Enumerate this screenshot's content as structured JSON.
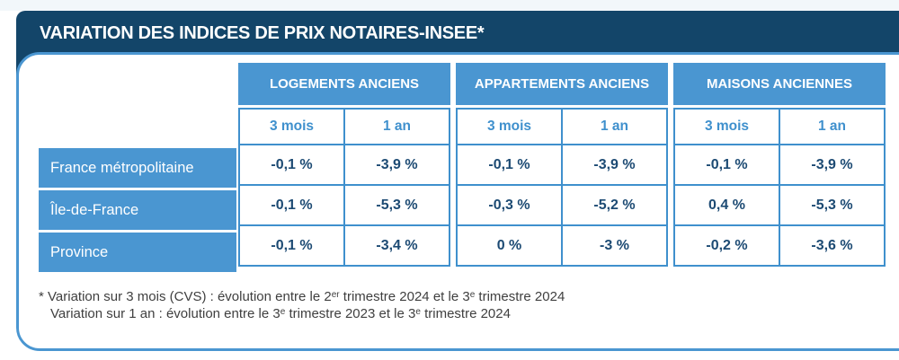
{
  "title": "VARIATION DES INDICES DE PRIX NOTAIRES-INSEE*",
  "table": {
    "groups": [
      {
        "label": "LOGEMENTS ANCIENS",
        "periods": [
          "3 mois",
          "1 an"
        ]
      },
      {
        "label": "APPARTEMENTS ANCIENS",
        "periods": [
          "3 mois",
          "1 an"
        ]
      },
      {
        "label": "MAISONS ANCIENNES",
        "periods": [
          "3 mois",
          "1 an"
        ]
      }
    ],
    "rows": [
      {
        "label": "France métropolitaine",
        "values": [
          "-0,1 %",
          "-3,9 %",
          "-0,1 %",
          "-3,9 %",
          "-0,1 %",
          "-3,9 %"
        ]
      },
      {
        "label": "Île-de-France",
        "values": [
          "-0,1 %",
          "-5,3 %",
          "-0,3 %",
          "-5,2 %",
          "0,4 %",
          "-5,3 %"
        ]
      },
      {
        "label": "Province",
        "values": [
          "-0,1 %",
          "-3,4 %",
          "0 %",
          "-3 %",
          "-0,2 %",
          "-3,6 %"
        ]
      }
    ]
  },
  "footnote": {
    "line1": {
      "t1": "* Variation sur 3 mois (CVS) : évolution entre le 2",
      "sup1": "er",
      "t2": " trimestre 2024 et le 3",
      "sup2": "e",
      "t3": " trimestre 2024"
    },
    "line2": {
      "t1": "Variation sur 1 an : évolution entre le 3",
      "sup1": "e",
      "t2": " trimestre 2023 et le 3",
      "sup2": "e",
      "t3": " trimestre 2024"
    }
  },
  "colors": {
    "navy_header": "#134569",
    "table_blue": "#4a96d1",
    "border_blue": "#3f90cd",
    "value_text": "#1c4a73",
    "note_text": "#3f3f3f"
  },
  "chart_data": {
    "type": "table",
    "title": "VARIATION DES INDICES DE PRIX NOTAIRES-INSEE*",
    "column_groups": [
      "LOGEMENTS ANCIENS",
      "APPARTEMENTS ANCIENS",
      "MAISONS ANCIENNES"
    ],
    "sub_columns": [
      "3 mois",
      "1 an"
    ],
    "row_labels": [
      "France métropolitaine",
      "Île-de-France",
      "Province"
    ],
    "values_pct": [
      [
        -0.1,
        -3.9,
        -0.1,
        -3.9,
        -0.1,
        -3.9
      ],
      [
        -0.1,
        -5.3,
        -0.3,
        -5.2,
        0.4,
        -5.3
      ],
      [
        -0.1,
        -3.4,
        0,
        -3,
        -0.2,
        -3.6
      ]
    ],
    "footnote_lines": [
      "* Variation sur 3 mois (CVS) : évolution entre le 2er trimestre 2024 et le 3e trimestre 2024",
      "Variation sur 1 an : évolution entre le 3e trimestre 2023 et le 3e trimestre 2024"
    ]
  }
}
